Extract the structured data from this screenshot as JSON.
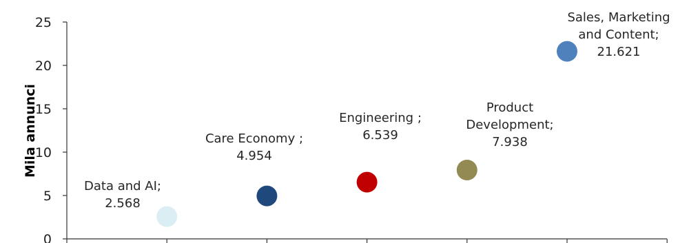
{
  "chart_data": {
    "type": "scatter",
    "title": "",
    "xlabel": "",
    "ylabel": "Mila annunci",
    "ylim": [
      0,
      25
    ],
    "y_ticks": [
      "0",
      "5",
      "10",
      "15",
      "20",
      "25"
    ],
    "x_ticks": [],
    "grid": false,
    "legend": "none",
    "points": [
      {
        "label_lines": [
          "Data and AI;",
          "2.568"
        ],
        "value_text": "2.568",
        "x": 1,
        "y": 2.568,
        "color": "#DAEEF3"
      },
      {
        "label_lines": [
          "Care Economy ;",
          "4.954"
        ],
        "value_text": "4.954",
        "x": 2,
        "y": 4.954,
        "color": "#1F497D"
      },
      {
        "label_lines": [
          "Engineering ;",
          "6.539"
        ],
        "value_text": "6.539",
        "x": 3,
        "y": 6.539,
        "color": "#C00000"
      },
      {
        "label_lines": [
          "Product",
          "Development;",
          "7.938"
        ],
        "value_text": "7.938",
        "x": 4,
        "y": 7.938,
        "color": "#938953"
      },
      {
        "label_lines": [
          "Sales, Marketing",
          "and Content;",
          "21.621"
        ],
        "value_text": "21.621",
        "x": 5,
        "y": 21.621,
        "color": "#4F81BD"
      }
    ]
  }
}
